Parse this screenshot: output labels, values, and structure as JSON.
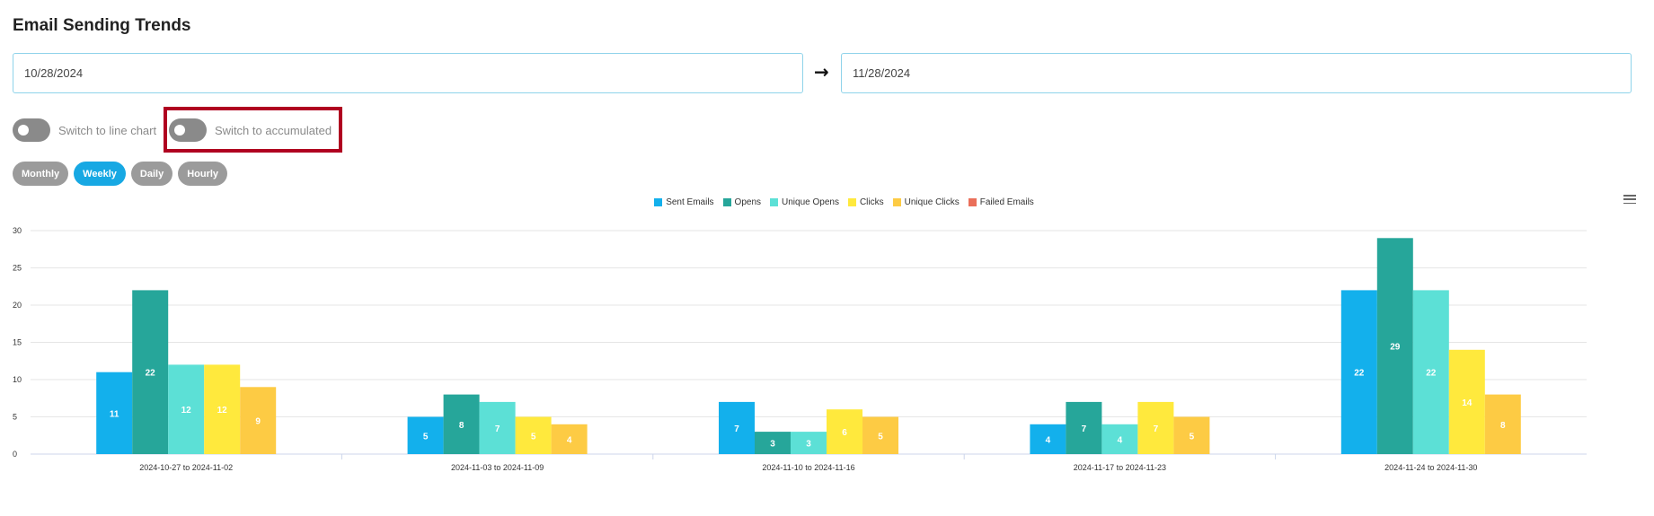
{
  "header": {
    "title": "Email Sending Trends"
  },
  "date_range": {
    "start": "10/28/2024",
    "end": "11/28/2024",
    "arrow": "→"
  },
  "toggles": {
    "line_chart_label": "Switch to line chart",
    "accumulated_label": "Switch to accumulated"
  },
  "period_buttons": [
    {
      "label": "Monthly",
      "active": false
    },
    {
      "label": "Weekly",
      "active": true
    },
    {
      "label": "Daily",
      "active": false
    },
    {
      "label": "Hourly",
      "active": false
    }
  ],
  "menu_icon": "hamburger-menu-icon",
  "chart_data": {
    "type": "bar",
    "title": "",
    "xlabel": "",
    "ylabel": "",
    "ylim": [
      0,
      30
    ],
    "yticks": [
      0,
      5,
      10,
      15,
      20,
      25,
      30
    ],
    "grid": true,
    "legend_position": "top-center",
    "categories": [
      "2024-10-27 to 2024-11-02",
      "2024-11-03 to 2024-11-09",
      "2024-11-10 to 2024-11-16",
      "2024-11-17 to 2024-11-23",
      "2024-11-24 to 2024-11-30"
    ],
    "series": [
      {
        "name": "Sent Emails",
        "color": "#13b0ec",
        "values": [
          11,
          5,
          7,
          4,
          22
        ]
      },
      {
        "name": "Opens",
        "color": "#26a69a",
        "values": [
          22,
          8,
          3,
          7,
          29
        ]
      },
      {
        "name": "Unique Opens",
        "color": "#5ce0d6",
        "values": [
          12,
          7,
          3,
          4,
          22
        ]
      },
      {
        "name": "Clicks",
        "color": "#ffe93d",
        "values": [
          12,
          5,
          6,
          7,
          14
        ]
      },
      {
        "name": "Unique Clicks",
        "color": "#fdcb44",
        "values": [
          9,
          4,
          5,
          5,
          8
        ]
      },
      {
        "name": "Failed Emails",
        "color": "#ea6f5a",
        "values": [
          0,
          0,
          0,
          0,
          0
        ]
      }
    ]
  }
}
